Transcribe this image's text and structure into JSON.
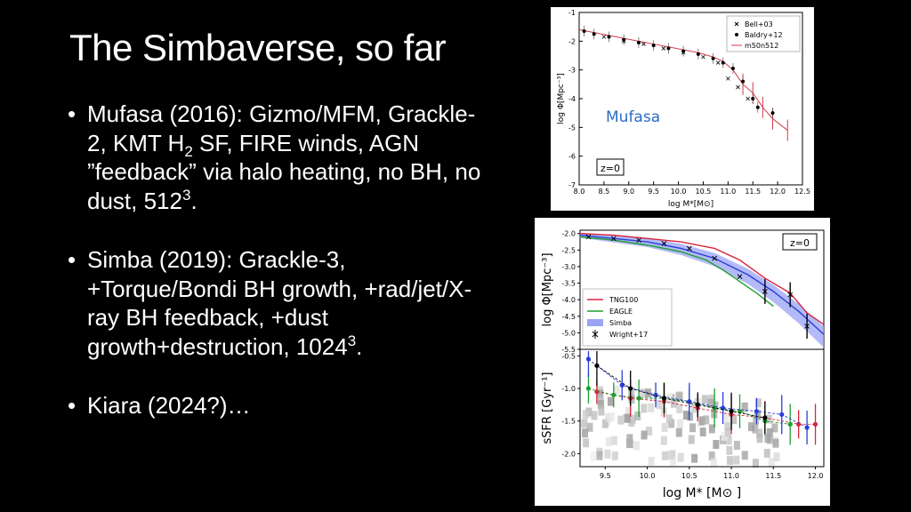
{
  "slide": {
    "title": "The Simbaverse, so far",
    "bullets": [
      {
        "parts": [
          {
            "t": "Mufasa (2016):  Gizmo/MFM, Grackle-2, KMT H"
          },
          {
            "t": "2",
            "style": "sub"
          },
          {
            "t": " SF, FIRE winds, AGN ”feedback” via halo heating, no BH, no dust, 512"
          },
          {
            "t": "3",
            "style": "sup"
          },
          {
            "t": "."
          }
        ]
      },
      {
        "parts": [
          {
            "t": "Simba (2019):  Grackle-3, +Torque/Bondi BH growth, +rad/jet/X-ray BH feedback, +dust growth+destruction, 1024"
          },
          {
            "t": "3",
            "style": "sup"
          },
          {
            "t": "."
          }
        ]
      },
      {
        "parts": [
          {
            "t": "Kiara (2024?)…"
          }
        ]
      }
    ]
  },
  "chart_data": [
    {
      "type": "line",
      "xlabel": "log M*[M⊙]",
      "ylabel": "log Φ[Mpc⁻³]",
      "xlim": [
        8.0,
        12.5
      ],
      "ylim": [
        -7,
        -1
      ],
      "x_ticks": [
        "8.0",
        "8.5",
        "9.0",
        "9.5",
        "10.0",
        "10.5",
        "11.0",
        "11.5",
        "12.0",
        "12.5"
      ],
      "y_ticks": [
        "-1",
        "-2",
        "-3",
        "-4",
        "-5",
        "-6",
        "-7"
      ],
      "annotations": [
        "Mufasa",
        "z=0"
      ],
      "legend_position": "top-right",
      "series": [
        {
          "name": "Bell+03",
          "marker": "x",
          "x": [
            8.5,
            8.9,
            9.3,
            9.7,
            10.1,
            10.5,
            10.8,
            11.0,
            11.2,
            11.4
          ],
          "y": [
            -1.85,
            -2.0,
            -2.1,
            -2.25,
            -2.4,
            -2.55,
            -2.75,
            -3.3,
            -3.6,
            -4.0
          ]
        },
        {
          "name": "Baldry+12",
          "marker": "dot",
          "x": [
            8.1,
            8.3,
            8.6,
            8.9,
            9.2,
            9.5,
            9.8,
            10.1,
            10.4,
            10.7,
            10.9,
            11.1,
            11.3,
            11.5,
            11.6,
            11.9
          ],
          "y": [
            -1.65,
            -1.75,
            -1.85,
            -1.95,
            -2.05,
            -2.15,
            -2.25,
            -2.35,
            -2.45,
            -2.6,
            -2.75,
            -2.95,
            -3.4,
            -4.0,
            -4.3,
            -4.5
          ]
        },
        {
          "name": "m50n512",
          "marker": "line",
          "x": [
            8.0,
            8.3,
            8.6,
            8.9,
            9.2,
            9.5,
            9.8,
            10.1,
            10.4,
            10.7,
            10.9,
            11.1,
            11.3,
            11.5,
            11.7,
            11.9,
            12.2
          ],
          "y": [
            -1.6,
            -1.7,
            -1.8,
            -1.9,
            -2.0,
            -2.1,
            -2.2,
            -2.3,
            -2.4,
            -2.55,
            -2.7,
            -3.0,
            -3.5,
            -3.8,
            -4.3,
            -4.7,
            -5.1
          ]
        }
      ]
    },
    {
      "type": "line",
      "xlabel": "log M* [M⊙ ]",
      "ylabel": "log Φ[Mpc⁻³]",
      "xlim": [
        9.2,
        12.1
      ],
      "ylim": [
        -5.5,
        -1.9
      ],
      "x_ticks": [
        "9.5",
        "10.0",
        "10.5",
        "11.0",
        "11.5",
        "12.0"
      ],
      "y_ticks": [
        "-2.0",
        "-2.5",
        "-3.0",
        "-3.5",
        "-4.0",
        "-4.5",
        "-5.0",
        "-5.5"
      ],
      "annotations": [
        "z=0"
      ],
      "legend_position": "lower-left",
      "series": [
        {
          "name": "TNG100",
          "color": "#d7263d",
          "x": [
            9.2,
            9.6,
            10.0,
            10.4,
            10.8,
            11.1,
            11.4,
            11.7,
            11.9,
            12.1
          ],
          "y": [
            -2.0,
            -2.05,
            -2.15,
            -2.25,
            -2.45,
            -2.8,
            -3.35,
            -3.8,
            -4.4,
            -4.75
          ]
        },
        {
          "name": "EAGLE",
          "color": "#1e9e2e",
          "x": [
            9.2,
            9.6,
            10.0,
            10.4,
            10.7,
            10.9,
            11.1,
            11.3,
            11.5
          ],
          "y": [
            -2.1,
            -2.2,
            -2.35,
            -2.55,
            -2.8,
            -3.1,
            -3.45,
            -3.8,
            -4.2
          ]
        },
        {
          "name": "Simba",
          "color": "#2a3fd6",
          "x": [
            9.2,
            9.6,
            10.0,
            10.4,
            10.8,
            11.2,
            11.5,
            11.8,
            12.1
          ],
          "y": [
            -2.05,
            -2.15,
            -2.25,
            -2.45,
            -2.75,
            -3.25,
            -3.75,
            -4.35,
            -5.05
          ]
        },
        {
          "name": "Wright+17",
          "color": "#000000",
          "marker": "x",
          "x": [
            9.3,
            9.6,
            9.9,
            10.2,
            10.5,
            10.8,
            11.1,
            11.4,
            11.7,
            11.9
          ],
          "y": [
            -2.1,
            -2.15,
            -2.2,
            -2.3,
            -2.45,
            -2.75,
            -3.3,
            -3.75,
            -3.85,
            -4.8
          ]
        }
      ]
    },
    {
      "type": "scatter",
      "xlabel": "log M* [M⊙ ]",
      "ylabel": "sSFR [Gyr⁻¹]",
      "xlim": [
        9.2,
        12.1
      ],
      "ylim": [
        -2.2,
        -0.4
      ],
      "x_ticks": [
        "9.5",
        "10.0",
        "10.5",
        "11.0",
        "11.5",
        "12.0"
      ],
      "y_ticks": [
        "-0.5",
        "-1.0",
        "-1.5",
        "-2.0"
      ],
      "series": [
        {
          "name": "TNG100",
          "color": "#d7263d",
          "x": [
            9.4,
            9.8,
            10.2,
            10.6,
            11.0,
            11.4,
            11.8,
            12.0
          ],
          "y": [
            -1.05,
            -1.15,
            -1.2,
            -1.3,
            -1.4,
            -1.45,
            -1.55,
            -1.55
          ]
        },
        {
          "name": "EAGLE",
          "color": "#1e9e2e",
          "x": [
            9.3,
            9.6,
            9.9,
            10.2,
            10.5,
            10.8,
            11.1,
            11.4,
            11.7
          ],
          "y": [
            -1.0,
            -1.1,
            -1.15,
            -1.15,
            -1.2,
            -1.3,
            -1.35,
            -1.5,
            -1.55
          ]
        },
        {
          "name": "Simba",
          "color": "#2a3fd6",
          "x": [
            9.3,
            9.7,
            10.1,
            10.5,
            10.9,
            11.3,
            11.6,
            11.9
          ],
          "y": [
            -0.55,
            -0.95,
            -1.1,
            -1.2,
            -1.3,
            -1.35,
            -1.4,
            -1.6
          ]
        },
        {
          "name": "Wright+17",
          "color": "#000000",
          "x": [
            9.4,
            9.8,
            10.2,
            10.6,
            11.0,
            11.4
          ],
          "y": [
            -0.65,
            -1.0,
            -1.15,
            -1.25,
            -1.35,
            -1.45
          ]
        }
      ]
    }
  ]
}
